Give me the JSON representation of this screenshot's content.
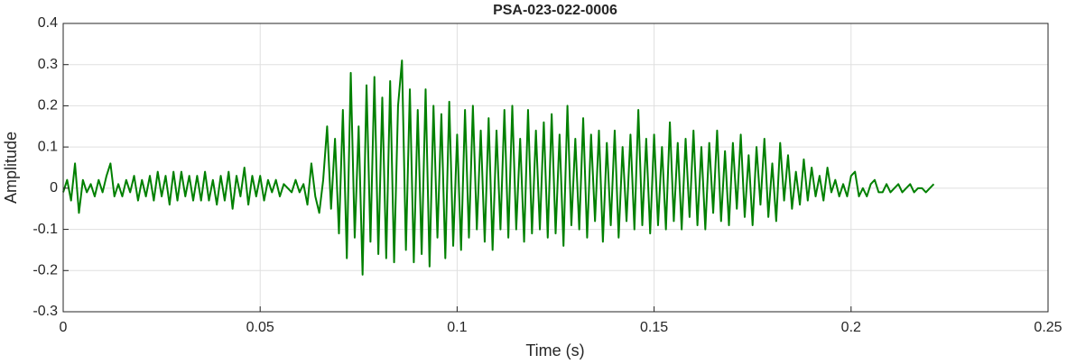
{
  "chart_data": {
    "type": "line",
    "title": "PSA-023-022-0006",
    "x_label": "Time (s)",
    "y_label": "Amplitude",
    "color": "#008000",
    "grid": true,
    "xlim": [
      0,
      0.25
    ],
    "xticks": [
      0,
      0.05,
      0.1,
      0.15,
      0.2,
      0.25
    ],
    "ylim": [
      -0.3,
      0.4
    ],
    "yticks": [
      -0.3,
      -0.2,
      -0.1,
      0,
      0.1,
      0.2,
      0.3,
      0.4
    ],
    "x": [
      0,
      0.001,
      0.002,
      0.003,
      0.004,
      0.005,
      0.006,
      0.007,
      0.008,
      0.009,
      0.01,
      0.011,
      0.012,
      0.013,
      0.014,
      0.015,
      0.016,
      0.017,
      0.018,
      0.019,
      0.02,
      0.021,
      0.022,
      0.023,
      0.024,
      0.025,
      0.026,
      0.027,
      0.028,
      0.029,
      0.03,
      0.031,
      0.032,
      0.033,
      0.034,
      0.035,
      0.036,
      0.037,
      0.038,
      0.039,
      0.04,
      0.041,
      0.042,
      0.043,
      0.044,
      0.045,
      0.046,
      0.047,
      0.048,
      0.049,
      0.05,
      0.051,
      0.052,
      0.053,
      0.054,
      0.055,
      0.056,
      0.057,
      0.058,
      0.059,
      0.06,
      0.061,
      0.062,
      0.063,
      0.064,
      0.065,
      0.066,
      0.067,
      0.068,
      0.069,
      0.07,
      0.071,
      0.072,
      0.073,
      0.074,
      0.075,
      0.076,
      0.077,
      0.078,
      0.079,
      0.08,
      0.081,
      0.082,
      0.083,
      0.084,
      0.085,
      0.086,
      0.087,
      0.088,
      0.089,
      0.09,
      0.091,
      0.092,
      0.093,
      0.094,
      0.095,
      0.096,
      0.097,
      0.098,
      0.099,
      0.1,
      0.101,
      0.102,
      0.103,
      0.104,
      0.105,
      0.106,
      0.107,
      0.108,
      0.109,
      0.11,
      0.111,
      0.112,
      0.113,
      0.114,
      0.115,
      0.116,
      0.117,
      0.118,
      0.119,
      0.12,
      0.121,
      0.122,
      0.123,
      0.124,
      0.125,
      0.126,
      0.127,
      0.128,
      0.129,
      0.13,
      0.131,
      0.132,
      0.133,
      0.134,
      0.135,
      0.136,
      0.137,
      0.138,
      0.139,
      0.14,
      0.141,
      0.142,
      0.143,
      0.144,
      0.145,
      0.146,
      0.147,
      0.148,
      0.149,
      0.15,
      0.151,
      0.152,
      0.153,
      0.154,
      0.155,
      0.156,
      0.157,
      0.158,
      0.159,
      0.16,
      0.161,
      0.162,
      0.163,
      0.164,
      0.165,
      0.166,
      0.167,
      0.168,
      0.169,
      0.17,
      0.171,
      0.172,
      0.173,
      0.174,
      0.175,
      0.176,
      0.177,
      0.178,
      0.179,
      0.18,
      0.181,
      0.182,
      0.183,
      0.184,
      0.185,
      0.186,
      0.187,
      0.188,
      0.189,
      0.19,
      0.191,
      0.192,
      0.193,
      0.194,
      0.195,
      0.196,
      0.197,
      0.198,
      0.199,
      0.2,
      0.201,
      0.202,
      0.203,
      0.204,
      0.205,
      0.206,
      0.207,
      0.208,
      0.209,
      0.21,
      0.211,
      0.212,
      0.213,
      0.214,
      0.215,
      0.216,
      0.217,
      0.218,
      0.219,
      0.22,
      0.221
    ],
    "values": [
      -0.01,
      0.02,
      -0.03,
      0.06,
      -0.06,
      0.02,
      -0.01,
      0.01,
      -0.02,
      0.02,
      -0.01,
      0.03,
      0.06,
      -0.02,
      0.01,
      -0.02,
      0.02,
      -0.01,
      0.03,
      -0.03,
      0.02,
      -0.02,
      0.03,
      -0.03,
      0.04,
      -0.02,
      0.03,
      -0.04,
      0.04,
      -0.03,
      0.04,
      -0.02,
      0.03,
      -0.03,
      0.03,
      -0.03,
      0.04,
      -0.03,
      0.02,
      -0.04,
      0.03,
      -0.03,
      0.04,
      -0.05,
      0.03,
      -0.02,
      0.05,
      -0.04,
      0.03,
      -0.02,
      0.03,
      -0.03,
      0.02,
      -0.01,
      0.02,
      -0.02,
      0.01,
      0,
      -0.01,
      0.02,
      -0.01,
      0.01,
      -0.04,
      0.06,
      -0.02,
      -0.06,
      0.02,
      0.15,
      -0.05,
      0.12,
      -0.11,
      0.19,
      -0.17,
      0.28,
      -0.12,
      0.15,
      -0.21,
      0.25,
      -0.13,
      0.27,
      -0.16,
      0.22,
      -0.17,
      0.26,
      -0.18,
      0.2,
      0.31,
      -0.15,
      0.24,
      -0.18,
      0.19,
      -0.16,
      0.24,
      -0.19,
      0.2,
      -0.12,
      0.18,
      -0.17,
      0.21,
      -0.14,
      0.13,
      -0.15,
      0.19,
      -0.12,
      0.2,
      -0.1,
      0.14,
      -0.13,
      0.17,
      -0.15,
      0.14,
      -0.1,
      0.19,
      -0.12,
      0.2,
      -0.1,
      0.12,
      -0.13,
      0.19,
      -0.11,
      0.14,
      -0.1,
      0.16,
      -0.12,
      0.18,
      -0.11,
      0.13,
      -0.14,
      0.2,
      -0.09,
      0.12,
      -0.1,
      0.17,
      -0.12,
      0.13,
      -0.08,
      0.14,
      -0.13,
      0.11,
      -0.09,
      0.14,
      -0.12,
      0.1,
      -0.08,
      0.13,
      -0.1,
      0.19,
      -0.09,
      0.12,
      -0.11,
      0.13,
      -0.09,
      0.1,
      -0.1,
      0.16,
      -0.08,
      0.11,
      -0.1,
      0.12,
      -0.07,
      0.14,
      -0.09,
      0.1,
      -0.1,
      0.11,
      -0.06,
      0.14,
      -0.08,
      0.09,
      -0.09,
      0.11,
      -0.05,
      0.13,
      -0.07,
      0.08,
      -0.09,
      0.1,
      -0.04,
      0.12,
      -0.07,
      0.06,
      -0.08,
      0.11,
      -0.03,
      0.08,
      -0.05,
      0.04,
      -0.04,
      0.07,
      -0.03,
      0.05,
      -0.02,
      0.03,
      -0.03,
      0.05,
      -0.01,
      0.02,
      -0.02,
      0.01,
      -0.02,
      0.03,
      0.04,
      -0.02,
      0,
      -0.02,
      0.01,
      0.02,
      -0.01,
      -0.01,
      0.01,
      -0.01,
      0,
      0.01,
      -0.01,
      0,
      0.01,
      -0.01,
      0,
      0,
      -0.01,
      0,
      0.01
    ]
  }
}
